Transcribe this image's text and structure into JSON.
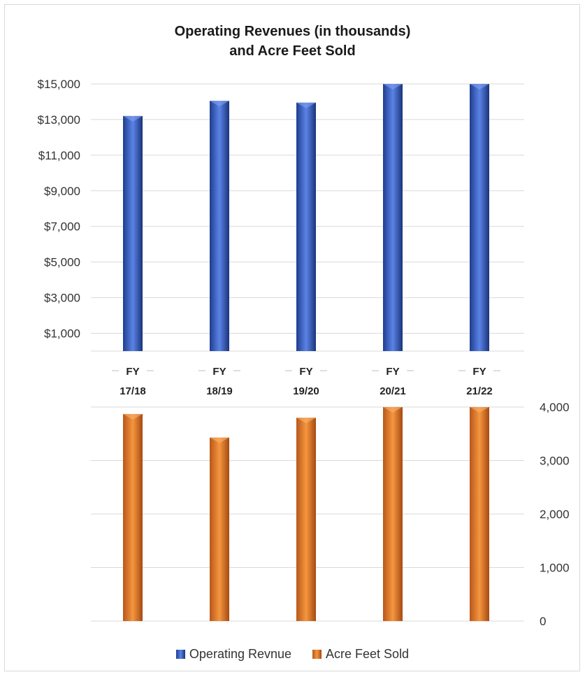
{
  "chart_data": [
    {
      "type": "bar",
      "title": "Operating Revenues (in thousands)",
      "subtitle": "and Acre Feet Sold",
      "categories": [
        [
          "FY",
          "17/18"
        ],
        [
          "FY",
          "18/19"
        ],
        [
          "FY",
          "19/20"
        ],
        [
          "FY",
          "20/21"
        ],
        [
          "FY",
          "21/22"
        ]
      ],
      "series": [
        {
          "name": "Operating Revnue",
          "values": [
            13200,
            14050,
            13950,
            15000,
            15000
          ],
          "color": "#3a62c4"
        }
      ],
      "ylim": [
        0,
        15000
      ],
      "yticks": [
        1000,
        3000,
        5000,
        7000,
        9000,
        11000,
        13000,
        15000
      ],
      "ytick_labels": [
        "$1,000",
        "$3,000",
        "$5,000",
        "$7,000",
        "$9,000",
        "$11,000",
        "$13,000",
        "$15,000"
      ],
      "grid": true
    },
    {
      "type": "bar",
      "series": [
        {
          "name": "Acre Feet Sold",
          "values": [
            3870,
            3430,
            3800,
            4000,
            4000
          ],
          "color": "#e8822e"
        }
      ],
      "ylim": [
        0,
        4000
      ],
      "yticks": [
        0,
        1000,
        2000,
        3000,
        4000
      ],
      "ytick_labels": [
        "0",
        "1,000",
        "2,000",
        "3,000",
        "4,000"
      ],
      "y_axis_side": "right",
      "grid": true
    }
  ],
  "legend": {
    "placement": "bottom",
    "items": [
      {
        "label": "Operating Revnue",
        "color": "#3a62c4"
      },
      {
        "label": "Acre Feet Sold",
        "color": "#e8822e"
      }
    ]
  }
}
